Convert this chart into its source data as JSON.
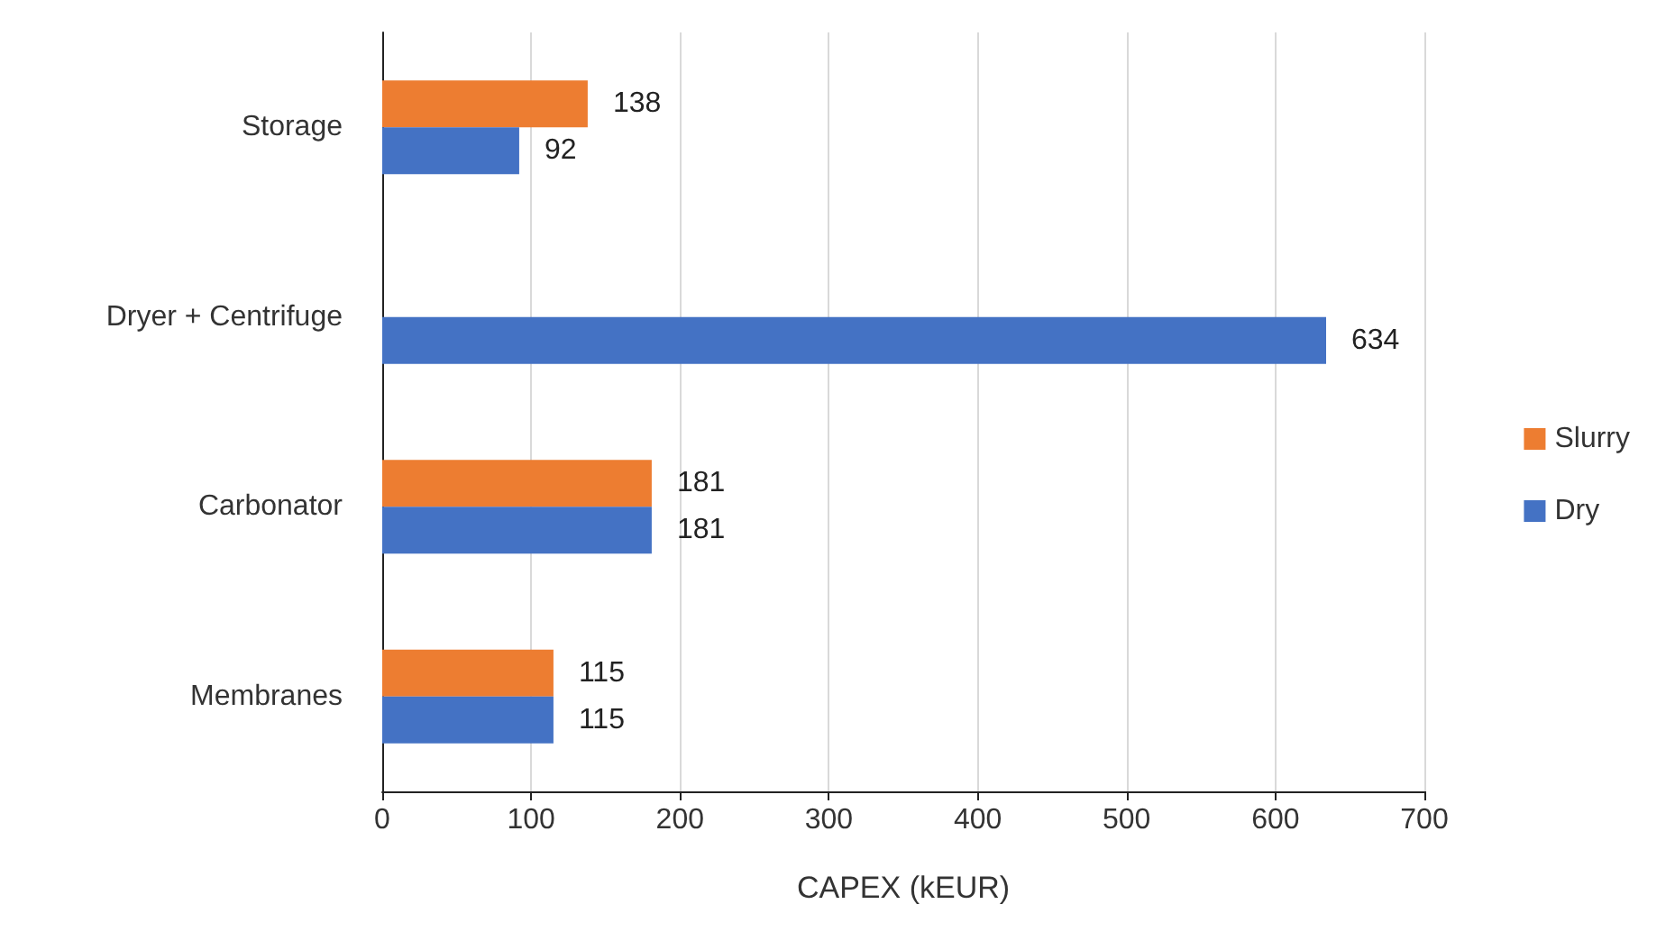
{
  "chart_data": {
    "type": "bar",
    "orientation": "horizontal",
    "xlabel": "CAPEX (kEUR)",
    "categories": [
      "Storage",
      "Dryer + Centrifuge",
      "Carbonator",
      "Membranes"
    ],
    "series": [
      {
        "name": "Slurry",
        "color": "#ed7d31",
        "values": [
          138,
          null,
          181,
          115
        ]
      },
      {
        "name": "Dry",
        "color": "#4472c4",
        "values": [
          92,
          634,
          181,
          115
        ]
      }
    ],
    "xlim": [
      0,
      700
    ],
    "xticks": [
      0,
      100,
      200,
      300,
      400,
      500,
      600,
      700
    ],
    "grid": "x",
    "legend": "right",
    "data_labels": true
  }
}
